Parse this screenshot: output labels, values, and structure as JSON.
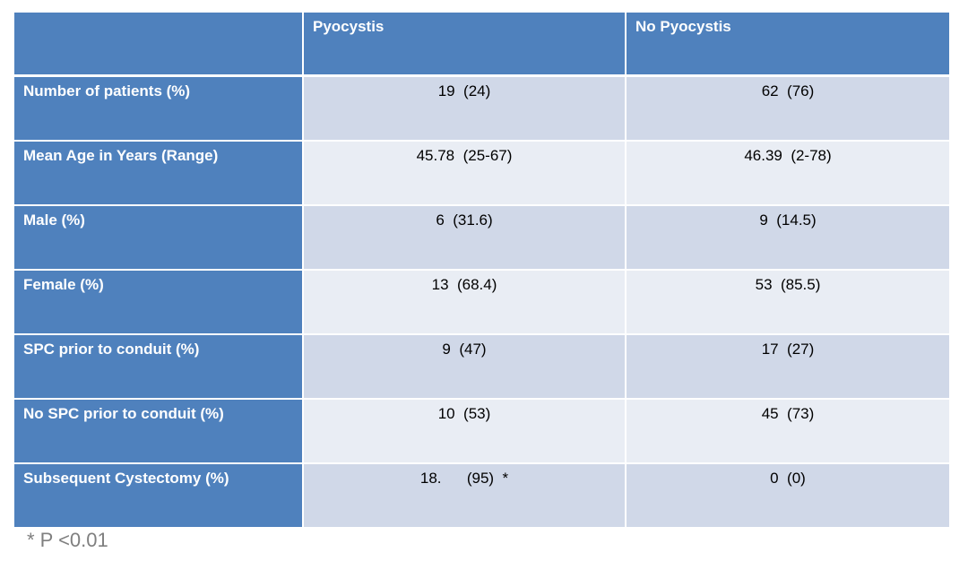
{
  "table": {
    "columns": [
      "",
      "Pyocystis",
      "No Pyocystis"
    ],
    "rows": [
      {
        "label": "Number of patients (%)",
        "pyocystis": "19  (24)",
        "no_pyocystis": "62  (76)"
      },
      {
        "label": "Mean Age in Years (Range)",
        "pyocystis": "45.78  (25-67)",
        "no_pyocystis": "46.39  (2-78)"
      },
      {
        "label": "Male (%)",
        "pyocystis": "6  (31.6)",
        "no_pyocystis": "9  (14.5)"
      },
      {
        "label": "Female (%)",
        "pyocystis": "13  (68.4)",
        "no_pyocystis": "53  (85.5)"
      },
      {
        "label": "SPC prior to conduit (%)",
        "pyocystis": "9  (47)",
        "no_pyocystis": "17  (27)"
      },
      {
        "label": "No SPC prior to conduit (%)",
        "pyocystis": "10  (53)",
        "no_pyocystis": "45  (73)"
      },
      {
        "label": "Subsequent Cystectomy (%)",
        "pyocystis": "18.      (95)  *",
        "no_pyocystis": "0  (0)"
      }
    ]
  },
  "footnote": "* P <0.01",
  "colors": {
    "header_blue": "#4f81bd",
    "band_dark": "#d0d8e8",
    "band_light": "#e9edf4",
    "footnote_gray": "#7f7f7f"
  }
}
